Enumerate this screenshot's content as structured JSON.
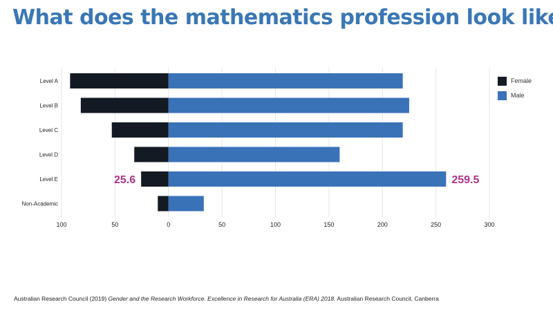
{
  "slide": {
    "title": "What does the mathematics profession look like?"
  },
  "citation": {
    "prefix": "Australian Research Council (2019) ",
    "italic": "Gender and the Research Workforce. Excellence in Research for Australia (ERA) 2018.",
    "suffix": " Australian Research Council, Canberra"
  },
  "colors": {
    "female": "#131a24",
    "male": "#3a72b8",
    "annotation": "#b3308a",
    "title": "#3a77b5"
  },
  "chart_data": {
    "type": "bar",
    "orientation": "horizontal-diverging",
    "categories": [
      "Level A",
      "Level B",
      "Level C",
      "Level D",
      "Level E",
      "Non-Academic"
    ],
    "series": [
      {
        "name": "Female",
        "values": [
          92,
          82,
          53,
          32,
          25.6,
          10
        ]
      },
      {
        "name": "Male",
        "values": [
          219,
          225,
          219,
          160,
          259.5,
          33
        ]
      }
    ],
    "xlim": [
      -100,
      300
    ],
    "x_ticks": [
      -100,
      -50,
      0,
      50,
      100,
      150,
      200,
      250,
      300
    ],
    "x_tick_labels": [
      "100",
      "50",
      "0",
      "50",
      "100",
      "150",
      "200",
      "250",
      "300"
    ],
    "grid": "vertical",
    "legend": "top-right",
    "annotations": [
      {
        "category": "Level E",
        "series": "Female",
        "text": "25.6"
      },
      {
        "category": "Level E",
        "series": "Male",
        "text": "259.5"
      }
    ]
  }
}
